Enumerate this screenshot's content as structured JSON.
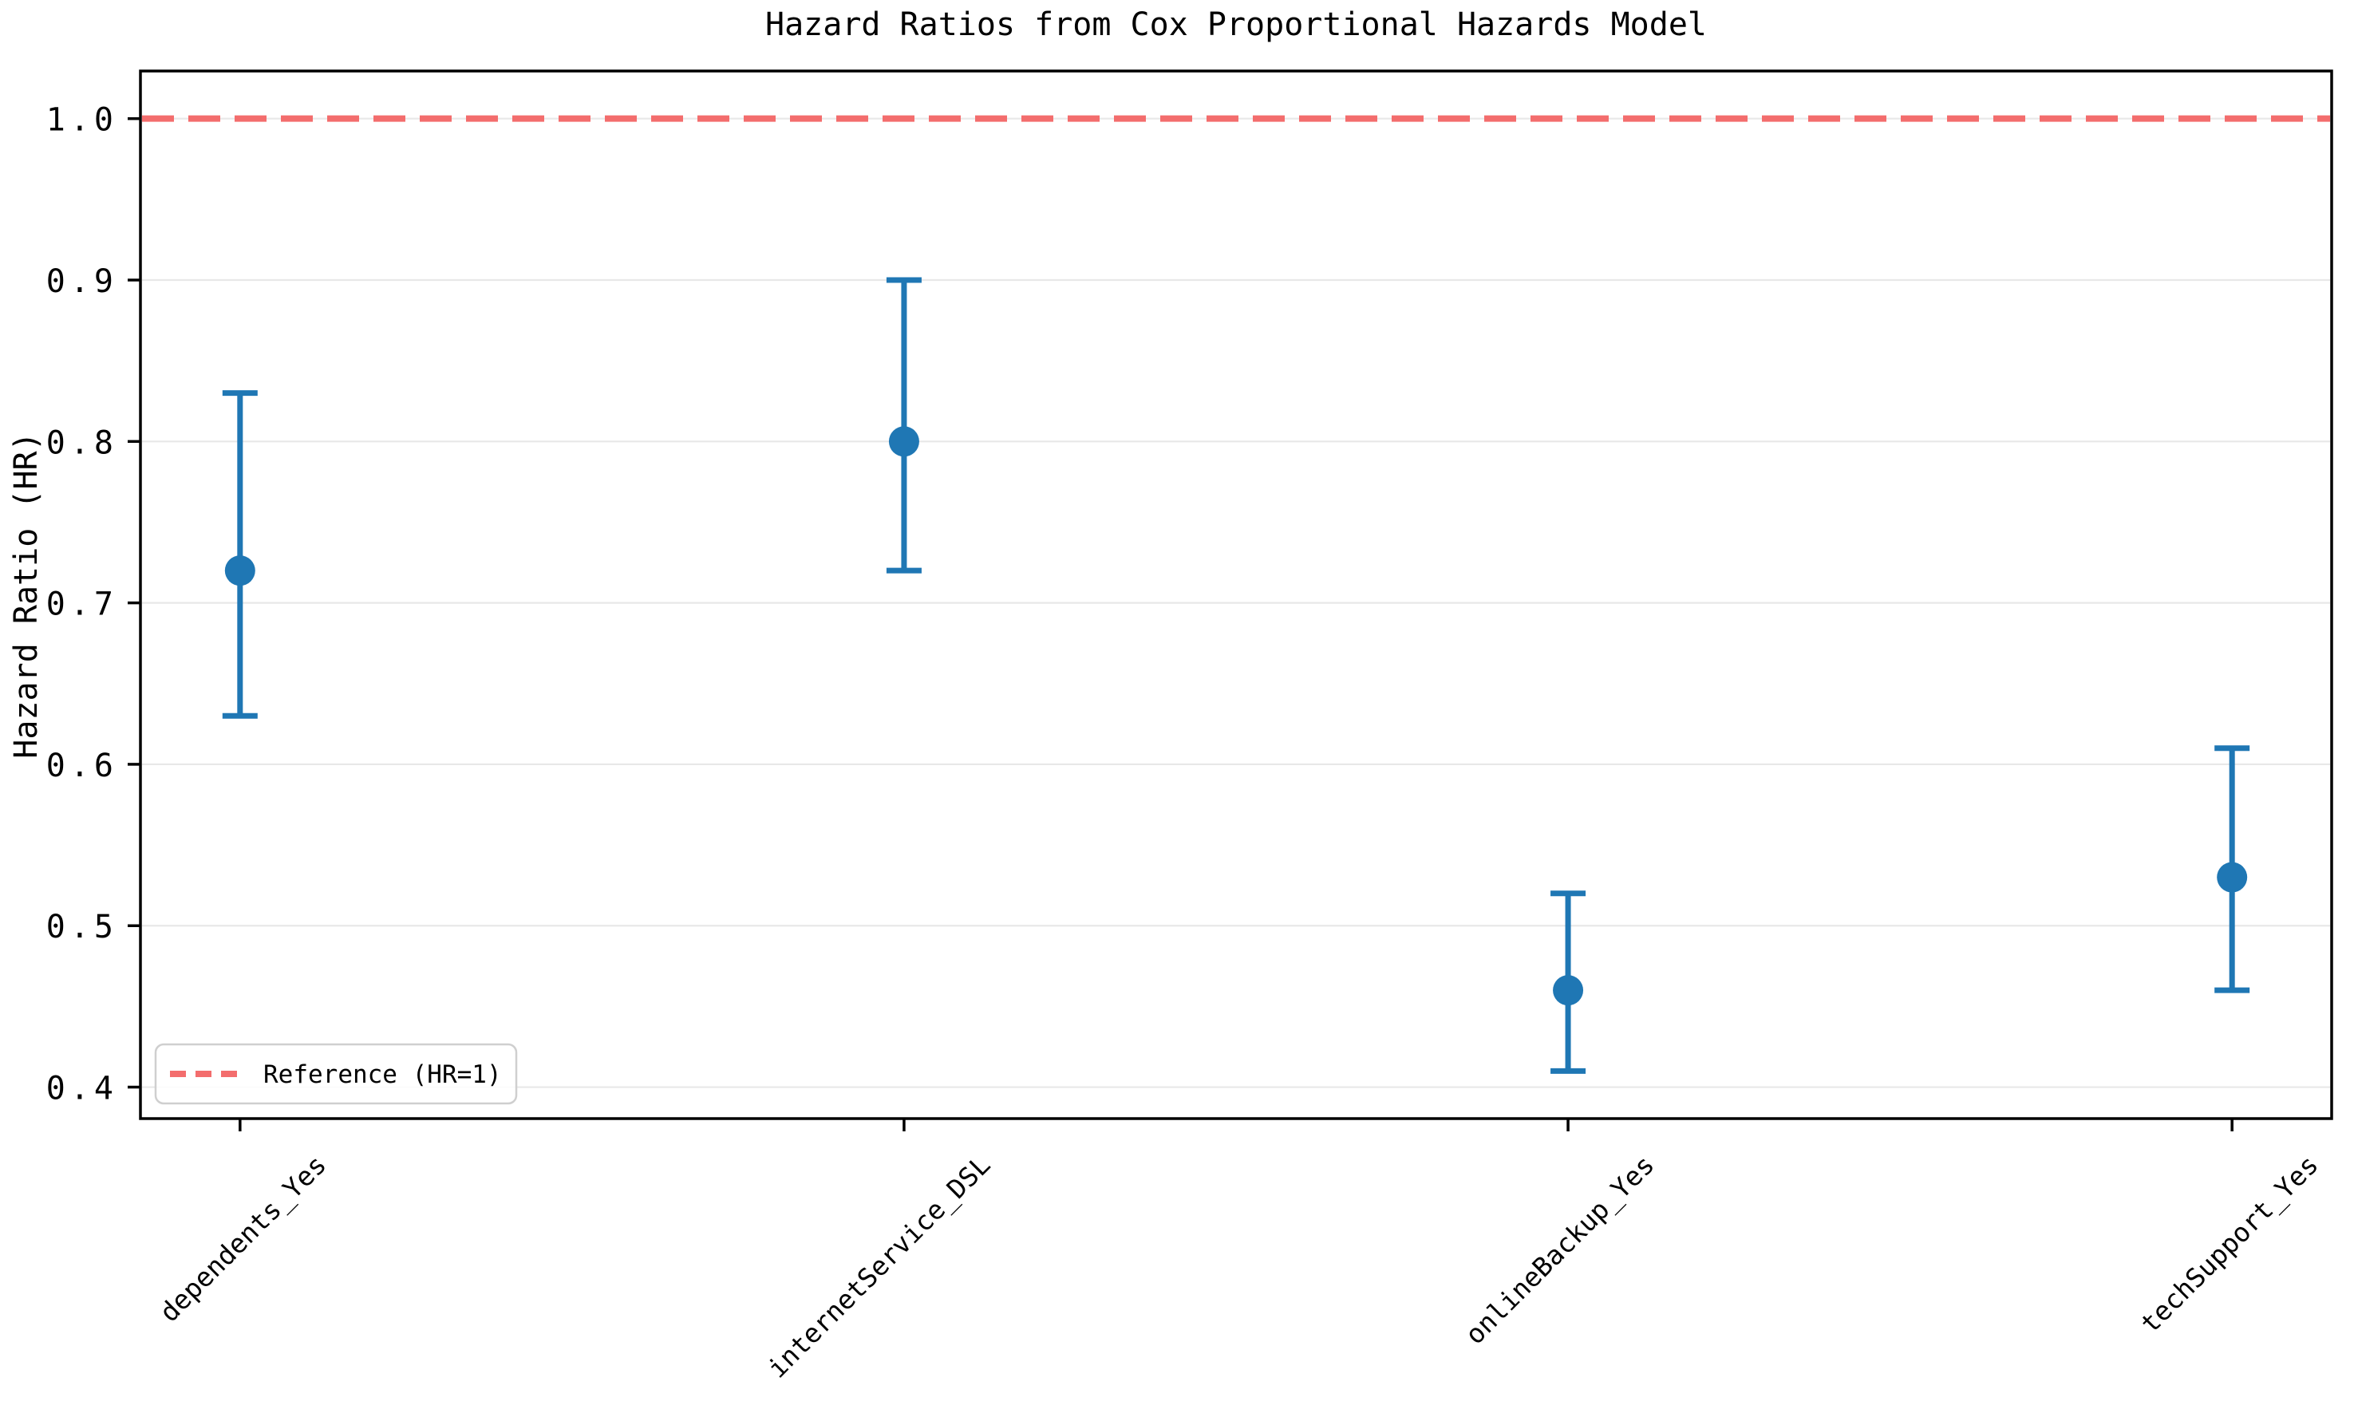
{
  "chart_data": {
    "type": "errorbar",
    "title": "Hazard Ratios from Cox Proportional Hazards Model",
    "xlabel": "",
    "ylabel": "Hazard Ratio (HR)",
    "categories": [
      "dependents_Yes",
      "internetService_DSL",
      "onlineBackup_Yes",
      "techSupport_Yes"
    ],
    "series": [
      {
        "name": "Hazard Ratio (HR)",
        "values": [
          0.72,
          0.8,
          0.46,
          0.53
        ],
        "ci_lower": [
          0.63,
          0.72,
          0.41,
          0.46
        ],
        "ci_upper": [
          0.83,
          0.9,
          0.52,
          0.61
        ]
      }
    ],
    "reference_line": {
      "value": 1.0,
      "label": "Reference (HR=1)",
      "color": "#f36d6d",
      "style": "dashed"
    },
    "yticks": [
      0.4,
      0.5,
      0.6,
      0.7,
      0.8,
      0.9,
      1.0
    ],
    "ytick_labels": [
      "0.4",
      "0.5",
      "0.6",
      "0.7",
      "0.8",
      "0.9",
      "1.0"
    ],
    "ylim": [
      0.3805,
      1.0295
    ],
    "xlim": [
      -0.15,
      3.15
    ],
    "x_tick_rotation": 45,
    "grid": "horizontal",
    "legend_position": "lower-left",
    "colors": {
      "marker": "#1f77b4",
      "error_bar": "#1f77b4",
      "reference": "#f36d6d",
      "grid": "#e8e8e8",
      "axis": "#000000",
      "legend_border": "#cfcfcf",
      "background": "#ffffff"
    }
  }
}
